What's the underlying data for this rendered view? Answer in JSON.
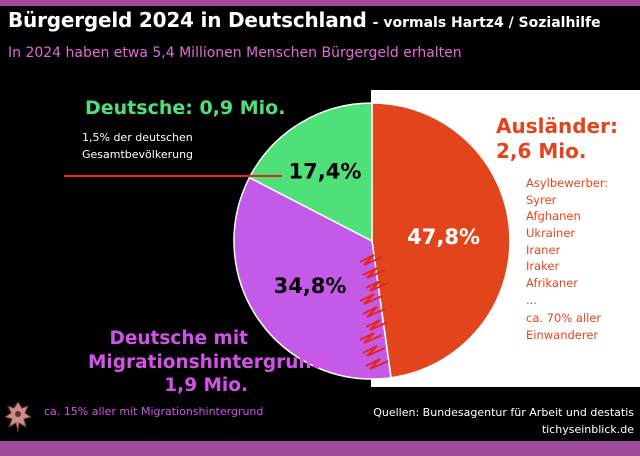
{
  "header": {
    "title": "Bürgergeld 2024 in Deutschland",
    "title_suffix": "- vormals Hartz4 / Sozialhilfe",
    "subtitle": "In 2024 haben etwa 5,4 Millionen Menschen Bürgergeld erhalten"
  },
  "labels": {
    "deutsche_head": "Deutsche: 0,9 Mio.",
    "deutsche_note_1": "1,5% der deutschen",
    "deutsche_note_2": "Gesamtbevölkerung",
    "auslaender_head_1": "Ausländer:",
    "auslaender_head_2": "2,6 Mio.",
    "asyl_items": [
      "Asylbewerber:",
      "Syrer",
      "Afghanen",
      "Ukrainer",
      "Iraner",
      "Iraker",
      "Afrikaner",
      "..."
    ],
    "auslaender_note_1": "ca. 70% aller",
    "auslaender_note_2": "Einwanderer",
    "migration_head_1": "Deutsche mit",
    "migration_head_2": "Migrationshintergrund:",
    "migration_head_3": "1,9 Mio.",
    "migration_note": "ca. 15% aller mit Migrationshintergrund",
    "source_1": "Quellen: Bundesagentur für Arbeit und destatis",
    "source_2": "tichyseinblick.de"
  },
  "colors": {
    "deutsche": "#4fe07a",
    "auslaender": "#e2451c",
    "migration": "#c45ae8",
    "accent_purple": "#a04a9c"
  },
  "chart_data": {
    "type": "pie",
    "slices": [
      {
        "name": "Ausländer",
        "value": 47.8,
        "value_label": "47,8%",
        "color": "#e2451c"
      },
      {
        "name": "Deutsche mit Migrationshintergrund",
        "value": 34.8,
        "value_label": "34,8%",
        "color": "#c45ae8"
      },
      {
        "name": "Deutsche",
        "value": 17.4,
        "value_label": "17,4%",
        "color": "#4fe07a"
      }
    ],
    "title": "Bürgergeld 2024 in Deutschland"
  }
}
